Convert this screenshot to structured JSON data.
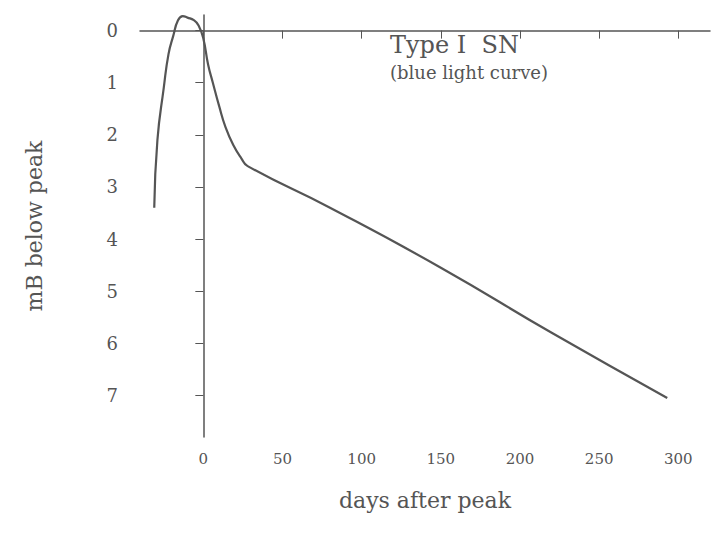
{
  "chart_data": {
    "type": "line",
    "title": "Type I  SN",
    "subtitle": "(blue light curve)",
    "xlabel": "days after peak",
    "ylabel": "mB below peak",
    "x": [
      -31,
      -29,
      -25,
      -22,
      -19,
      -16,
      -13,
      -10,
      -6,
      -3,
      0,
      3,
      6,
      10,
      14,
      19,
      24,
      28,
      80,
      150,
      220,
      293
    ],
    "values": [
      3.4,
      2.1,
      1.1,
      0.45,
      0.1,
      -0.2,
      -0.28,
      -0.25,
      -0.2,
      -0.1,
      0.15,
      0.65,
      1.0,
      1.45,
      1.85,
      2.2,
      2.45,
      2.6,
      3.4,
      4.55,
      5.8,
      7.05
    ],
    "color": "#555555",
    "xlim": [
      -40,
      320
    ],
    "ylim": [
      -0.3,
      7.8
    ],
    "xticks": [
      0,
      50,
      100,
      150,
      200,
      250,
      300
    ],
    "yticks": [
      0,
      1,
      2,
      3,
      4,
      5,
      6,
      7
    ],
    "grid": false,
    "marker": "none",
    "line_style": "solid"
  }
}
